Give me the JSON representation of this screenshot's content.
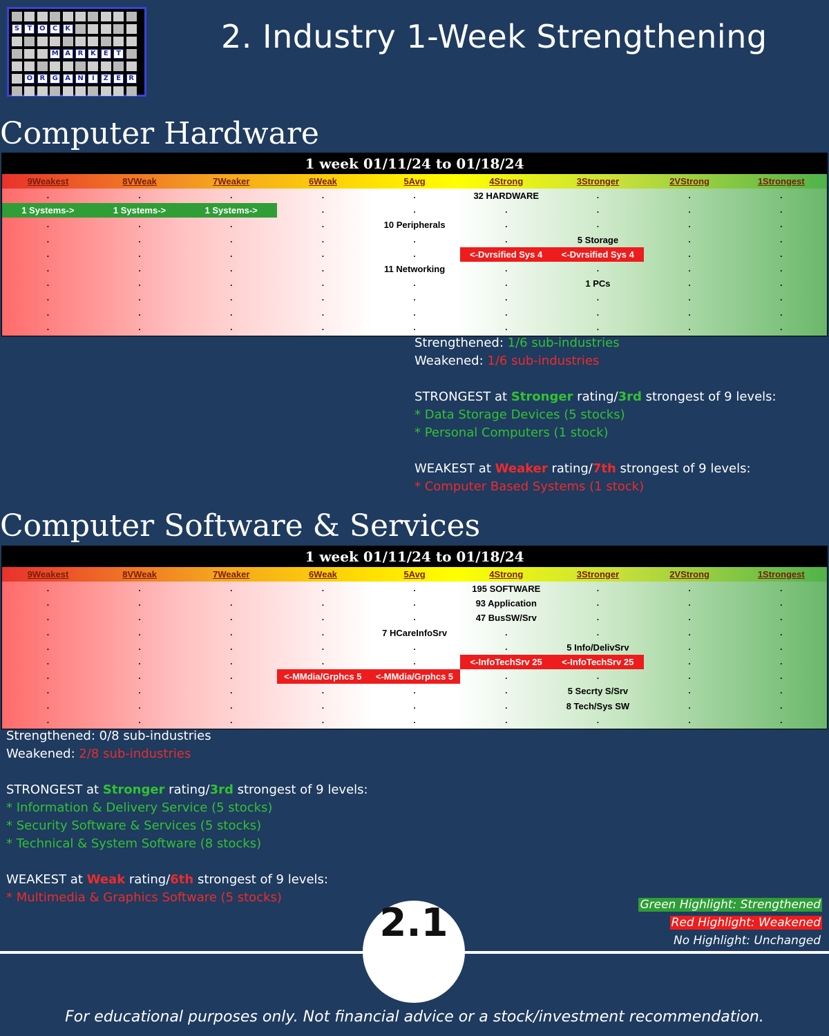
{
  "page": {
    "title": "2. Industry 1-Week Strengthening",
    "badge": "2.1",
    "footer": "For educational purposes only. Not financial advice or a stock/investment recommendation."
  },
  "logo": {
    "rows": [
      [
        "S",
        "T",
        "O",
        "C",
        "K"
      ],
      [
        "M",
        "A",
        "R",
        "K",
        "E",
        "T"
      ],
      [
        "O",
        "R",
        "G",
        "A",
        "N",
        "I",
        "Z",
        "E",
        "R"
      ]
    ]
  },
  "levels": [
    "9Weakest",
    "8VWeak",
    "7Weaker",
    "6Weak",
    "5Avg",
    "4Strong",
    "3Stronger",
    "2VStrong",
    "1Strongest"
  ],
  "hardware": {
    "section_title": "Computer Hardware",
    "chart_header": "1 week 01/11/24 to 01/18/24",
    "labels": [
      {
        "text": "32 HARDWARE",
        "row": 0,
        "col": 5
      },
      {
        "text": "10 Peripherals",
        "row": 2,
        "col": 4
      },
      {
        "text": "5 Storage",
        "row": 3,
        "col": 6
      },
      {
        "text": "11 Networking",
        "row": 5,
        "col": 4
      },
      {
        "text": "1 PCs",
        "row": 6,
        "col": 6
      }
    ],
    "green_highlight": {
      "row": 1,
      "start_col": 0,
      "cells": [
        "1 Systems->",
        "1 Systems->",
        "1 Systems->"
      ]
    },
    "red_highlight": {
      "row": 4,
      "start_col": 5,
      "cells": [
        "<-Dvrsified Sys 4",
        "<-Dvrsified Sys 4"
      ]
    },
    "summary": {
      "strengthened_label": "Strengthened: ",
      "strengthened_value": "1/6 sub-industries",
      "weakened_label": "Weakened: ",
      "weakened_value": "1/6 sub-industries",
      "strongest_prefix": "STRONGEST at ",
      "strongest_rating": "Stronger",
      "strongest_mid": " rating/",
      "strongest_rank": "3rd",
      "strongest_suffix": " strongest of 9 levels:",
      "strongest_items": [
        "* Data Storage Devices (5 stocks)",
        "* Personal Computers (1 stock)"
      ],
      "weakest_prefix": "WEAKEST at ",
      "weakest_rating": "Weaker",
      "weakest_mid": " rating/",
      "weakest_rank": "7th",
      "weakest_suffix": " strongest of 9 levels:",
      "weakest_items": [
        "* Computer Based Systems (1 stock)"
      ]
    }
  },
  "software": {
    "section_title": "Computer Software & Services",
    "chart_header": "1 week 01/11/24 to 01/18/24",
    "labels": [
      {
        "text": "195 SOFTWARE",
        "row": 0,
        "col": 5
      },
      {
        "text": "93 Application",
        "row": 1,
        "col": 5
      },
      {
        "text": "47 BusSW/Srv",
        "row": 2,
        "col": 5
      },
      {
        "text": "7 HCareInfoSrv",
        "row": 3,
        "col": 4
      },
      {
        "text": "5 Info/DelivSrv",
        "row": 4,
        "col": 6
      },
      {
        "text": "5 Secrty S/Srv",
        "row": 7,
        "col": 6
      },
      {
        "text": "8 Tech/Sys SW",
        "row": 8,
        "col": 6
      }
    ],
    "red_highlights": [
      {
        "row": 5,
        "start_col": 5,
        "cells": [
          "<-InfoTechSrv 25",
          "<-InfoTechSrv 25"
        ]
      },
      {
        "row": 6,
        "start_col": 3,
        "cells": [
          "<-MMdia/Grphcs 5",
          "<-MMdia/Grphcs 5"
        ]
      }
    ],
    "summary": {
      "strengthened_label": "Strengthened: ",
      "strengthened_value": "0/8 sub-industries",
      "weakened_label": "Weakened: ",
      "weakened_value": "2/8 sub-industries",
      "strongest_prefix": "STRONGEST at ",
      "strongest_rating": "Stronger",
      "strongest_mid": " rating/",
      "strongest_rank": "3rd",
      "strongest_suffix": " strongest of 9 levels:",
      "strongest_items": [
        "* Information & Delivery Service (5 stocks)",
        "* Security Software & Services (5 stocks)",
        "* Technical & System Software (8 stocks)"
      ],
      "weakest_prefix": "WEAKEST at ",
      "weakest_rating": "Weak",
      "weakest_mid": " rating/",
      "weakest_rank": "6th",
      "weakest_suffix": " strongest of 9 levels:",
      "weakest_items": [
        "* Multimedia & Graphics Software (5 stocks)"
      ]
    }
  },
  "legend": {
    "green": "Green Highlight: Strengthened",
    "red": "Red Highlight: Weakened",
    "none": "No Highlight: Unchanged"
  },
  "colors": {
    "background": "#1f3b5f",
    "green": "#33c133",
    "red": "#ee2b2b",
    "highlight_green": "#2f9e37",
    "highlight_red": "#ee1c1c"
  }
}
